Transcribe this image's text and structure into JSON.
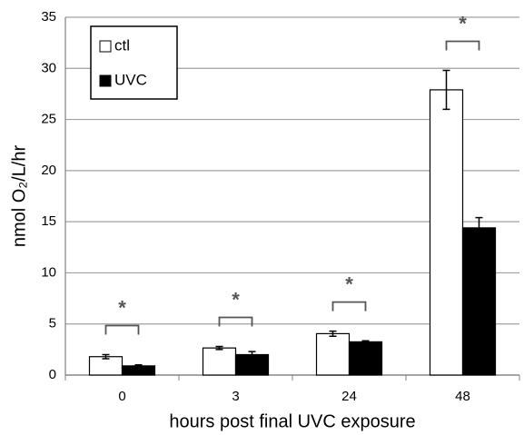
{
  "chart_data": {
    "type": "bar",
    "categories": [
      "0",
      "3",
      "24",
      "48"
    ],
    "series": [
      {
        "name": "ctl",
        "color": "#ffffff",
        "values": [
          1.8,
          2.65,
          4.05,
          27.9
        ],
        "errors": [
          0.2,
          0.15,
          0.25,
          1.9
        ]
      },
      {
        "name": "UVC",
        "color": "#000000",
        "values": [
          0.9,
          2.0,
          3.25,
          14.4
        ],
        "errors": [
          0.1,
          0.3,
          0.1,
          1.0
        ]
      }
    ],
    "ylim": [
      0,
      35
    ],
    "yticks": [
      0,
      5,
      10,
      15,
      20,
      25,
      30,
      35
    ],
    "grid": true,
    "ylabel": "nmol O₂/L/hr",
    "xlabel": "hours post final UVC exposure",
    "annotations": [
      "*",
      "*",
      "*",
      "*"
    ],
    "legend": "upper left"
  }
}
